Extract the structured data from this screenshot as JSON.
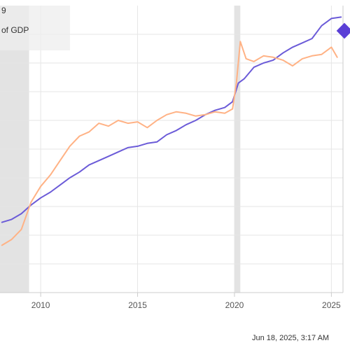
{
  "legend": {
    "line1": "9",
    "line2": "of GDP"
  },
  "timestamp": "Jun 18, 2025, 3:17 AM",
  "colors": {
    "purple_series": "#6b5bd8",
    "orange_series": "#ffb285",
    "recession_shade": "#cccccc",
    "gridline": "#e6e6e6",
    "axis": "#cccccc",
    "tick_label": "#555555",
    "marker": "#5a3fd6"
  },
  "chart_data": {
    "type": "line",
    "x_tick_labels": [
      "2010",
      "2015",
      "2020",
      "2025"
    ],
    "xlim": [
      2007.9,
      2025.6
    ],
    "ylim": [
      0,
      100
    ],
    "grid": true,
    "shaded_periods": [
      [
        2007.9,
        2009.4
      ],
      [
        2020.0,
        2020.3
      ]
    ],
    "series": [
      {
        "color": "purple",
        "x": [
          2008.0,
          2008.5,
          2009.0,
          2009.5,
          2010.0,
          2010.5,
          2011.0,
          2011.5,
          2012.0,
          2012.5,
          2013.0,
          2013.5,
          2014.0,
          2014.5,
          2015.0,
          2015.5,
          2016.0,
          2016.5,
          2017.0,
          2017.5,
          2018.0,
          2018.5,
          2019.0,
          2019.5,
          2019.9,
          2020.2,
          2020.5,
          2021.0,
          2021.5,
          2022.0,
          2022.5,
          2023.0,
          2023.5,
          2024.0,
          2024.5,
          2025.0,
          2025.5
        ],
        "y": [
          24.5,
          25.5,
          27.5,
          30.5,
          33.0,
          35.0,
          37.5,
          40.0,
          42.0,
          44.5,
          46.0,
          47.5,
          49.0,
          50.5,
          51.0,
          52.0,
          52.5,
          55.0,
          56.5,
          58.5,
          60.0,
          62.0,
          63.5,
          64.5,
          66.5,
          73.0,
          74.5,
          78.5,
          80.0,
          81.0,
          83.5,
          85.5,
          87.0,
          88.5,
          93.0,
          95.5,
          96.0
        ]
      },
      {
        "color": "orange",
        "x": [
          2008.0,
          2008.5,
          2009.0,
          2009.5,
          2010.0,
          2010.5,
          2011.0,
          2011.5,
          2012.0,
          2012.5,
          2013.0,
          2013.5,
          2014.0,
          2014.5,
          2015.0,
          2015.5,
          2016.0,
          2016.5,
          2017.0,
          2017.5,
          2018.0,
          2018.5,
          2019.0,
          2019.5,
          2019.9,
          2020.1,
          2020.3,
          2020.6,
          2021.0,
          2021.5,
          2022.0,
          2022.5,
          2023.0,
          2023.5,
          2024.0,
          2024.5,
          2025.0,
          2025.3
        ],
        "y": [
          16.5,
          18.5,
          22.0,
          31.5,
          37.0,
          41.0,
          46.0,
          51.0,
          54.5,
          56.0,
          59.0,
          58.0,
          60.0,
          59.0,
          59.5,
          57.5,
          60.0,
          62.0,
          63.0,
          62.5,
          61.5,
          62.0,
          63.0,
          62.5,
          64.0,
          73.0,
          87.5,
          81.5,
          80.5,
          82.5,
          82.0,
          81.0,
          79.0,
          81.5,
          82.5,
          83.0,
          85.5,
          82.0
        ]
      }
    ]
  }
}
